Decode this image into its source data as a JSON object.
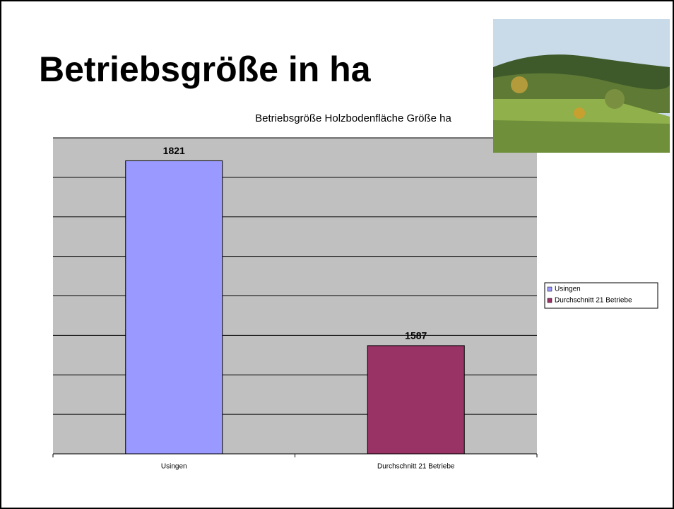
{
  "slide_title": "Betriebsgröße in ha",
  "chart_data": {
    "type": "bar",
    "title": "Betriebsgröße Holzbodenfläche Größe ha",
    "categories": [
      "Usingen",
      "Durchschnitt  21 Betriebe"
    ],
    "series": [
      {
        "name": "Usingen",
        "color": "#9999ff",
        "values": [
          1821,
          null
        ]
      },
      {
        "name": "Durchschnitt  21 Betriebe",
        "color": "#993366",
        "values": [
          null,
          1587
        ]
      }
    ],
    "ylim": [
      1450,
      1850
    ],
    "yticks": [
      1450,
      1500,
      1550,
      1600,
      1650,
      1700,
      1750,
      1800,
      1850
    ],
    "grid": true,
    "legend": "right",
    "plot_background": "#c0c0c0"
  }
}
